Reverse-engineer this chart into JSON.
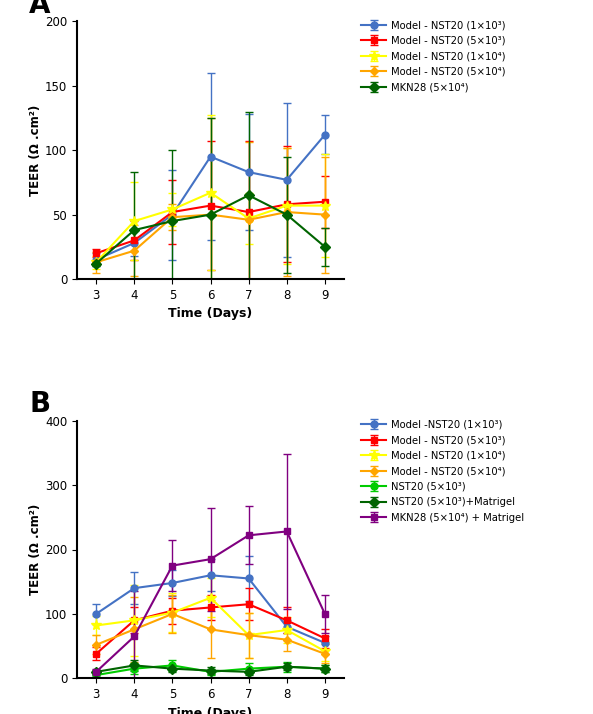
{
  "days": [
    3,
    4,
    5,
    6,
    7,
    8,
    9
  ],
  "A_title": "A",
  "A_ylabel": "TEER (Ω .cm²)",
  "A_xlabel": "Time (Days)",
  "A_ylim": [
    0,
    200
  ],
  "A_yticks": [
    0,
    50,
    100,
    150,
    200
  ],
  "A_series": [
    {
      "label": "Model - NST20 (1×10³)",
      "color": "#4472C4",
      "marker": "o",
      "markersize": 5,
      "mean": [
        15,
        28,
        50,
        95,
        83,
        77,
        112
      ],
      "err": [
        5,
        10,
        35,
        65,
        45,
        60,
        15
      ]
    },
    {
      "label": "Model - NST20 (5×10³)",
      "color": "#FF0000",
      "marker": "s",
      "markersize": 5,
      "mean": [
        20,
        30,
        52,
        57,
        52,
        58,
        60
      ],
      "err": [
        3,
        15,
        25,
        50,
        55,
        45,
        20
      ]
    },
    {
      "label": "Model - NST20 (1×10⁴)",
      "color": "#FFFF00",
      "marker": "*",
      "markersize": 7,
      "mean": [
        13,
        45,
        54,
        67,
        47,
        57,
        57
      ],
      "err": [
        5,
        30,
        13,
        60,
        20,
        45,
        40
      ]
    },
    {
      "label": "Model - NST20 (5×10⁴)",
      "color": "#FFA500",
      "marker": "D",
      "markersize": 4,
      "mean": [
        13,
        22,
        48,
        50,
        46,
        52,
        50
      ],
      "err": [
        8,
        20,
        10,
        75,
        60,
        50,
        45
      ]
    },
    {
      "label": "MKN28 (5×10⁴)",
      "color": "#006400",
      "marker": "D",
      "markersize": 5,
      "mean": [
        12,
        38,
        45,
        50,
        65,
        50,
        25
      ],
      "err": [
        2,
        45,
        55,
        75,
        65,
        45,
        15
      ]
    }
  ],
  "B_title": "B",
  "B_ylabel": "TEER (Ω .cm²)",
  "B_xlabel": "Time (Days)",
  "B_ylim": [
    0,
    400
  ],
  "B_yticks": [
    0,
    100,
    200,
    300,
    400
  ],
  "B_series": [
    {
      "label": "Model -NST20 (1×10³)",
      "color": "#4472C4",
      "marker": "o",
      "markersize": 5,
      "mean": [
        100,
        140,
        148,
        160,
        155,
        80,
        55
      ],
      "err": [
        15,
        25,
        20,
        25,
        35,
        10,
        10
      ]
    },
    {
      "label": "Model - NST20 (5×10³)",
      "color": "#FF0000",
      "marker": "s",
      "markersize": 5,
      "mean": [
        38,
        90,
        105,
        110,
        115,
        90,
        62
      ],
      "err": [
        10,
        20,
        20,
        20,
        25,
        20,
        15
      ]
    },
    {
      "label": "Model - NST20 (1×10⁴)",
      "color": "#FFFF00",
      "marker": "*",
      "markersize": 7,
      "mean": [
        82,
        90,
        102,
        125,
        67,
        75,
        42
      ],
      "err": [
        15,
        55,
        30,
        30,
        35,
        20,
        15
      ]
    },
    {
      "label": "Model - NST20 (5×10⁴)",
      "color": "#FFA500",
      "marker": "D",
      "markersize": 4,
      "mean": [
        52,
        76,
        100,
        76,
        67,
        60,
        38
      ],
      "err": [
        15,
        50,
        30,
        45,
        35,
        18,
        15
      ]
    },
    {
      "label": "NST20 (5×10³)",
      "color": "#00CC00",
      "marker": "o",
      "markersize": 5,
      "mean": [
        5,
        15,
        20,
        10,
        15,
        18,
        15
      ],
      "err": [
        3,
        8,
        8,
        5,
        8,
        8,
        5
      ]
    },
    {
      "label": "NST20 (5×10³)+Matrigel",
      "color": "#006400",
      "marker": "D",
      "markersize": 5,
      "mean": [
        10,
        20,
        15,
        12,
        10,
        18,
        15
      ],
      "err": [
        3,
        8,
        5,
        5,
        5,
        5,
        5
      ]
    },
    {
      "label": "MKN28 (5×10⁴) + Matrigel",
      "color": "#800080",
      "marker": "s",
      "markersize": 5,
      "mean": [
        10,
        65,
        175,
        185,
        222,
        228,
        100
      ],
      "err": [
        5,
        70,
        40,
        80,
        45,
        120,
        30
      ]
    }
  ]
}
